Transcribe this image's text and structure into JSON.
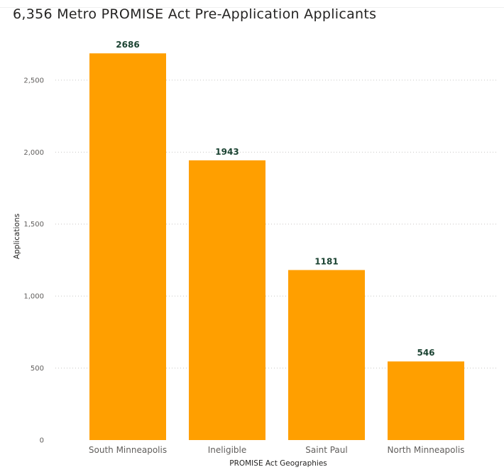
{
  "chart_data": {
    "type": "bar",
    "title": "6,356 Metro PROMISE Act Pre-Application Applicants",
    "xlabel": "PROMISE Act Geographies",
    "ylabel": "Applications",
    "categories": [
      "South Minneapolis",
      "Ineligible",
      "Saint Paul",
      "North Minneapolis"
    ],
    "values": [
      2686,
      1943,
      1181,
      546
    ],
    "data_labels": [
      "2686",
      "1943",
      "1181",
      "546"
    ],
    "ylim": [
      0,
      2686
    ],
    "y_ticks": [
      0,
      500,
      1000,
      1500,
      2000,
      2500
    ],
    "y_tick_labels": [
      "0",
      "500",
      "1,000",
      "1,500",
      "2,000",
      "2,500"
    ],
    "bar_color": "#FF9F00",
    "data_label_color": "#1B4332",
    "grid": true,
    "legend": "none"
  }
}
